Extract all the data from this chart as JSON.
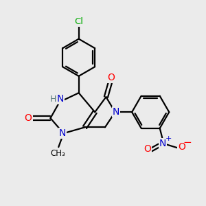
{
  "background_color": "#ebebeb",
  "bond_color": "#000000",
  "atom_colors": {
    "N": "#0000cc",
    "O": "#ff0000",
    "Cl": "#00aa00",
    "H": "#557777",
    "C": "#000000"
  },
  "figsize": [
    3.0,
    3.0
  ],
  "dpi": 100
}
